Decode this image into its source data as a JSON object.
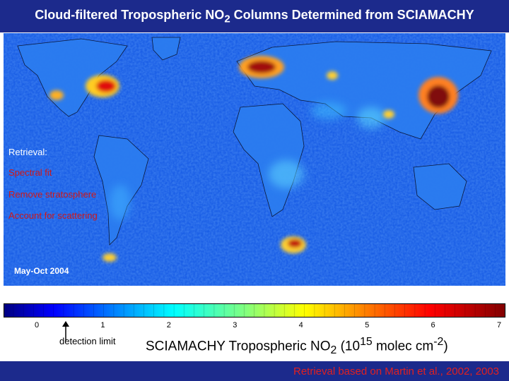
{
  "title": {
    "text": "Cloud-filtered Tropospheric NO",
    "sub": "2",
    "rest": " Columns Determined from SCIAMACHY"
  },
  "map": {
    "retrieval_heading": "Retrieval:",
    "steps": [
      "Spectral fit",
      "Remove stratosphere",
      "Account for scattering"
    ],
    "period": "May-Oct 2004",
    "hotspots": [
      "eastern-us",
      "western-europe",
      "eastern-china",
      "south-africa-highveld",
      "central-africa-burning",
      "india",
      "middle-east",
      "south-america"
    ]
  },
  "colorbar": {
    "ticks": [
      "0",
      "1",
      "2",
      "3",
      "4",
      "5",
      "6",
      "7"
    ],
    "range": [
      0,
      7
    ],
    "stops": [
      "#00007f",
      "#0000ff",
      "#0080ff",
      "#00ffff",
      "#80ff80",
      "#ffff00",
      "#ff8000",
      "#ff0000",
      "#800000"
    ],
    "detection_limit_label": "detection limit",
    "detection_limit_value": 0.5,
    "label": {
      "pre": "SCIAMACHY Tropospheric NO",
      "sub": "2",
      "mid": " (10",
      "sup1": "15",
      "post": " molec cm",
      "sup2": "-2",
      "end": ")"
    }
  },
  "credit": "Retrieval based on Martin et al., 2002, 2003"
}
